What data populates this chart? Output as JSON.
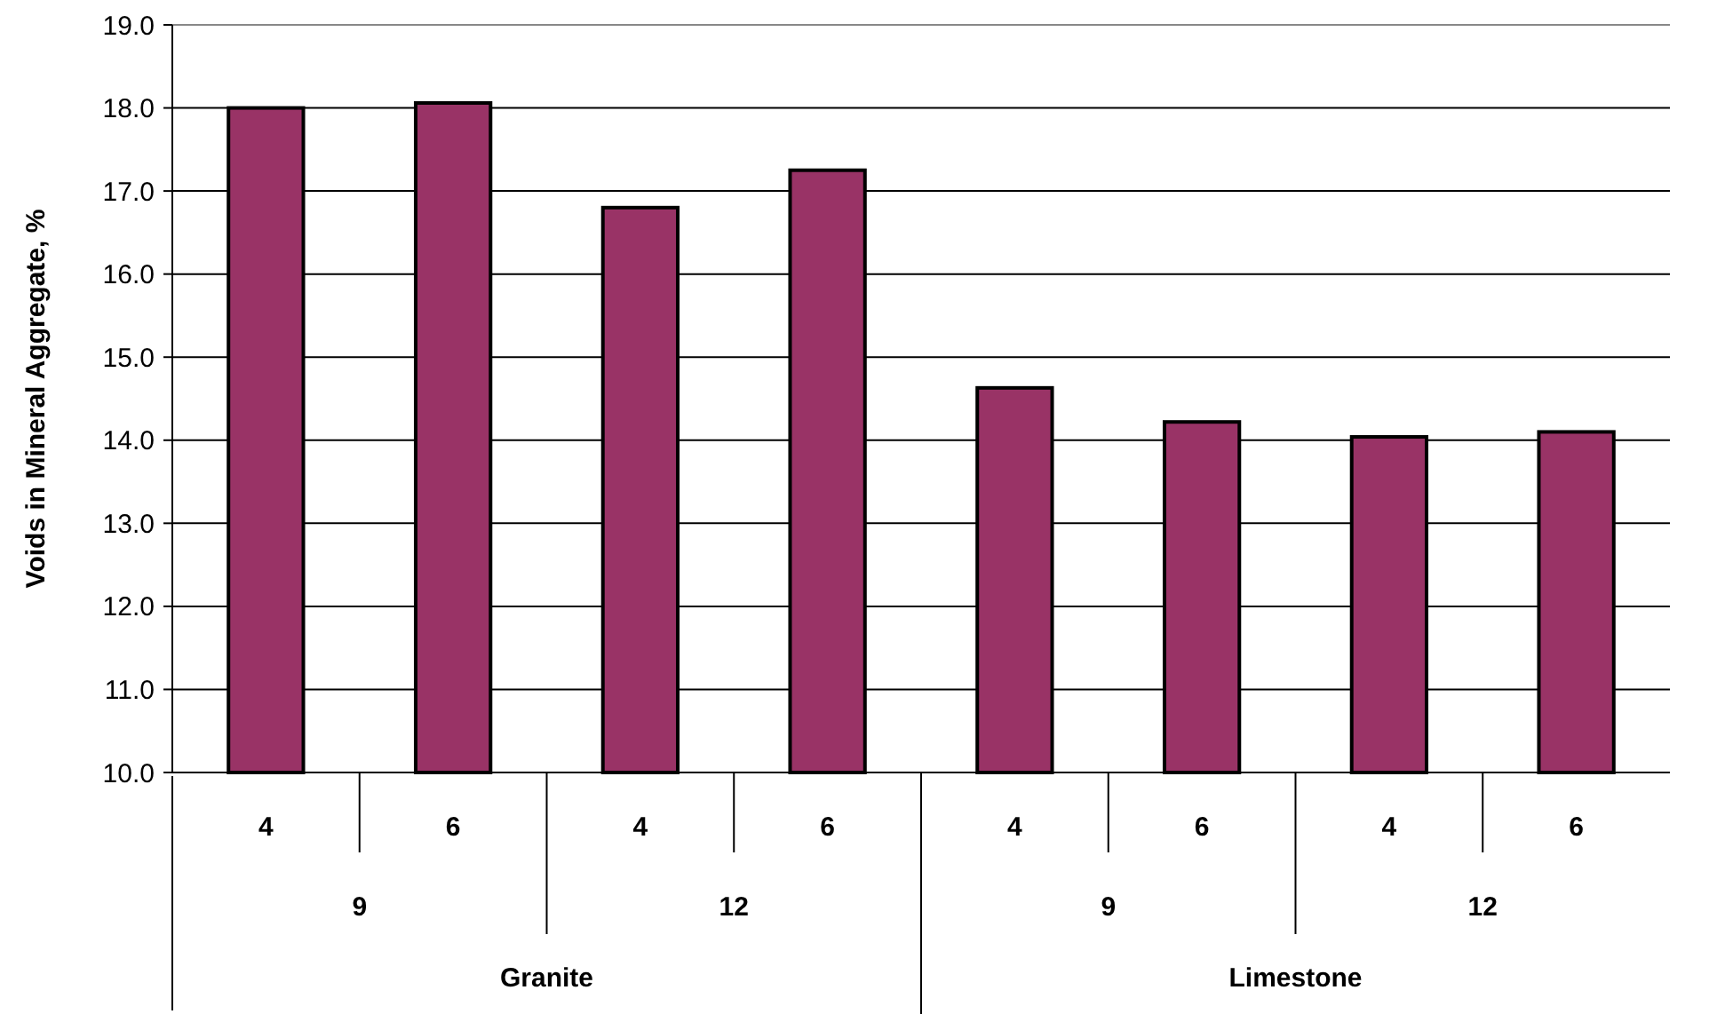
{
  "chart_data": {
    "type": "bar",
    "ylabel": "Voids in Mineral Aggregate, %",
    "categories": [
      "4",
      "6",
      "4",
      "6",
      "4",
      "6",
      "4",
      "6"
    ],
    "values": [
      18.0,
      18.06,
      16.8,
      17.25,
      14.63,
      14.22,
      14.04,
      14.1
    ],
    "color": "#993366",
    "ylim": [
      10,
      19
    ],
    "yticks": [
      {
        "value": 10,
        "label": "10.0"
      },
      {
        "value": 11,
        "label": "11.0"
      },
      {
        "value": 12,
        "label": "12.0"
      },
      {
        "value": 13,
        "label": "13.0"
      },
      {
        "value": 14,
        "label": "14.0"
      },
      {
        "value": 15,
        "label": "15.0"
      },
      {
        "value": 16,
        "label": "16.0"
      },
      {
        "value": 17,
        "label": "17.0"
      },
      {
        "value": 18,
        "label": "18.0"
      },
      {
        "value": 19,
        "label": "19.0"
      }
    ],
    "grid": "y",
    "annotations": [
      "9",
      "12",
      "9",
      "12",
      "Granite",
      "Limestone"
    ]
  }
}
